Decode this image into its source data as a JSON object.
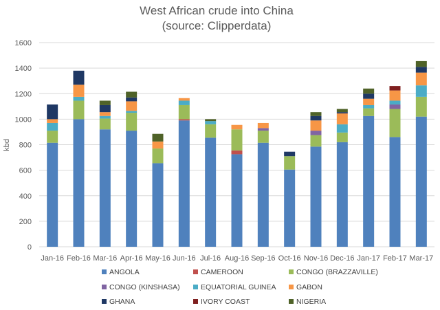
{
  "chart_data": {
    "type": "bar",
    "stacked": true,
    "title": [
      "West African crude into China",
      "(source: Clipperdata)"
    ],
    "xlabel": "",
    "ylabel": "kbd",
    "ylim": [
      0,
      1600
    ],
    "yticks": [
      0,
      200,
      400,
      600,
      800,
      1000,
      1200,
      1400,
      1600
    ],
    "grid": true,
    "legend_position": "bottom",
    "categories": [
      "Jan-16",
      "Feb-16",
      "Mar-16",
      "Apr-16",
      "May-16",
      "Jun-16",
      "Jul-16",
      "Aug-16",
      "Sep-16",
      "Oct-16",
      "Nov-16",
      "Dec-16",
      "Jan-17",
      "Feb-17",
      "Mar-17"
    ],
    "series": [
      {
        "name": "ANGOLA",
        "color": "#4f81bd",
        "values": [
          815,
          1000,
          920,
          910,
          655,
          990,
          855,
          725,
          815,
          605,
          785,
          820,
          1025,
          860,
          1020
        ]
      },
      {
        "name": "CAMEROON",
        "color": "#c0504d",
        "values": [
          0,
          0,
          0,
          0,
          0,
          10,
          0,
          30,
          0,
          0,
          0,
          0,
          0,
          0,
          0
        ]
      },
      {
        "name": "CONGO (BRAZZAVILLE)",
        "color": "#9bbb59",
        "values": [
          95,
          145,
          85,
          140,
          115,
          110,
          105,
          165,
          95,
          105,
          90,
          75,
          60,
          220,
          155
        ]
      },
      {
        "name": "CONGO (KINSHASA)",
        "color": "#8064a2",
        "values": [
          0,
          0,
          0,
          0,
          0,
          0,
          0,
          0,
          20,
          0,
          35,
          0,
          0,
          35,
          0
        ]
      },
      {
        "name": "EQUATORIAL GUINEA",
        "color": "#4bacc6",
        "values": [
          60,
          30,
          20,
          15,
          0,
          35,
          25,
          0,
          0,
          0,
          0,
          65,
          25,
          30,
          90
        ]
      },
      {
        "name": "GABON",
        "color": "#f79646",
        "values": [
          30,
          95,
          30,
          75,
          55,
          20,
          0,
          35,
          40,
          0,
          80,
          85,
          50,
          80,
          100
        ]
      },
      {
        "name": "GHANA",
        "color": "#1f3864",
        "values": [
          115,
          110,
          55,
          30,
          0,
          0,
          0,
          0,
          0,
          35,
          35,
          10,
          40,
          0,
          45
        ]
      },
      {
        "name": "IVORY COAST",
        "color": "#7f1f1f",
        "values": [
          0,
          0,
          0,
          0,
          0,
          0,
          0,
          0,
          0,
          0,
          0,
          0,
          0,
          35,
          0
        ]
      },
      {
        "name": "NIGERIA",
        "color": "#4f6228",
        "values": [
          0,
          0,
          35,
          45,
          60,
          0,
          15,
          0,
          0,
          0,
          30,
          25,
          40,
          0,
          45
        ]
      }
    ]
  }
}
